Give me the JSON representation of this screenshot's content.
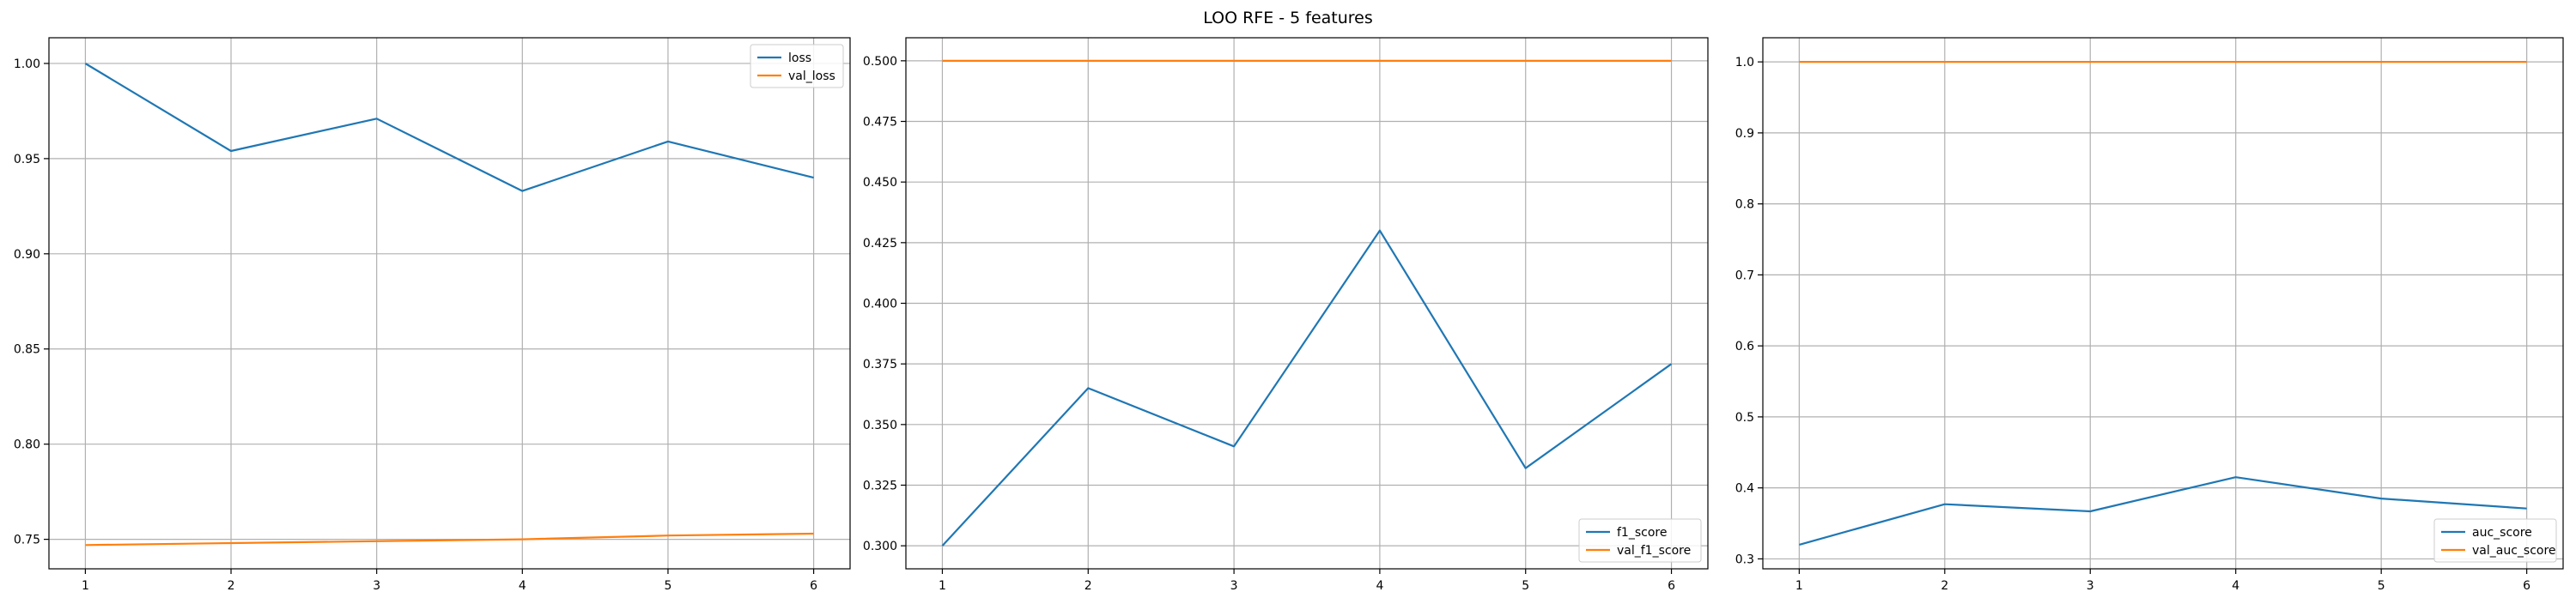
{
  "suptitle": "LOO RFE - 5 features",
  "chart_data": [
    {
      "type": "line",
      "x": [
        1,
        2,
        3,
        4,
        5,
        6
      ],
      "xlim": [
        0.75,
        6.25
      ],
      "ylim": [
        0.7345,
        1.0135
      ],
      "yticks": [
        0.75,
        0.8,
        0.85,
        0.9,
        0.95,
        1.0
      ],
      "ytick_labels": [
        "0.75",
        "0.80",
        "0.85",
        "0.90",
        "0.95",
        "1.00"
      ],
      "grid": true,
      "legend_position": "top-right",
      "series": [
        {
          "name": "loss",
          "color": "#1f77b4",
          "values": [
            1.0,
            0.954,
            0.971,
            0.933,
            0.959,
            0.94
          ]
        },
        {
          "name": "val_loss",
          "color": "#ff7f0e",
          "values": [
            0.747,
            0.748,
            0.749,
            0.75,
            0.752,
            0.753
          ]
        }
      ]
    },
    {
      "type": "line",
      "x": [
        1,
        2,
        3,
        4,
        5,
        6
      ],
      "xlim": [
        0.75,
        6.25
      ],
      "ylim": [
        0.2905,
        0.5095
      ],
      "yticks": [
        0.3,
        0.325,
        0.35,
        0.375,
        0.4,
        0.425,
        0.45,
        0.475,
        0.5
      ],
      "ytick_labels": [
        "0.300",
        "0.325",
        "0.350",
        "0.375",
        "0.400",
        "0.425",
        "0.450",
        "0.475",
        "0.500"
      ],
      "grid": true,
      "legend_position": "bottom-right",
      "series": [
        {
          "name": "f1_score",
          "color": "#1f77b4",
          "values": [
            0.3,
            0.365,
            0.341,
            0.43,
            0.332,
            0.375
          ]
        },
        {
          "name": "val_f1_score",
          "color": "#ff7f0e",
          "values": [
            0.5,
            0.5,
            0.5,
            0.5,
            0.5,
            0.5
          ]
        }
      ]
    },
    {
      "type": "line",
      "x": [
        1,
        2,
        3,
        4,
        5,
        6
      ],
      "xlim": [
        0.75,
        6.25
      ],
      "ylim": [
        0.286,
        1.034
      ],
      "yticks": [
        0.3,
        0.4,
        0.5,
        0.6,
        0.7,
        0.8,
        0.9,
        1.0
      ],
      "ytick_labels": [
        "0.3",
        "0.4",
        "0.5",
        "0.6",
        "0.7",
        "0.8",
        "0.9",
        "1.0"
      ],
      "grid": true,
      "legend_position": "bottom-right",
      "series": [
        {
          "name": "auc_score",
          "color": "#1f77b4",
          "values": [
            0.32,
            0.377,
            0.367,
            0.415,
            0.385,
            0.371
          ]
        },
        {
          "name": "val_auc_score",
          "color": "#ff7f0e",
          "values": [
            1.0,
            1.0,
            1.0,
            1.0,
            1.0,
            1.0
          ]
        }
      ]
    }
  ]
}
